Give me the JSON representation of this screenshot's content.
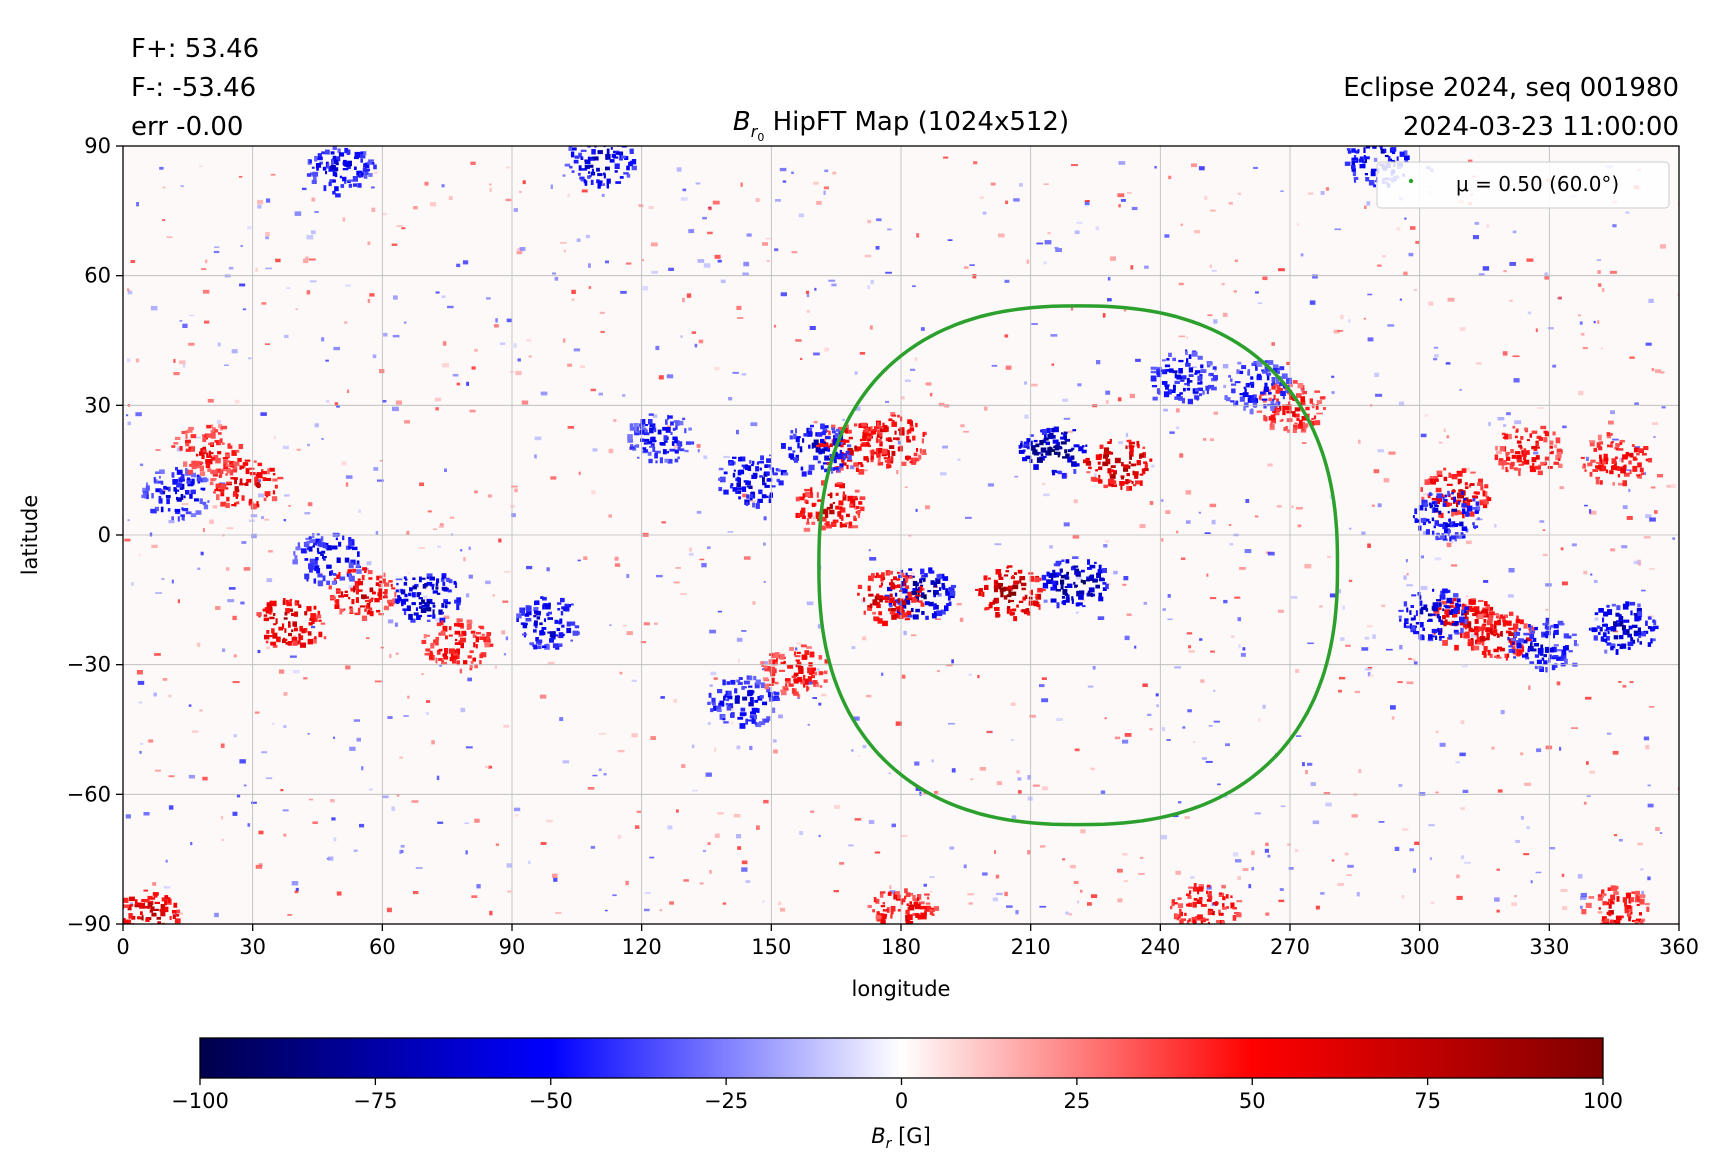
{
  "header": {
    "flux_pos": "F+: 53.46",
    "flux_neg": "F-: -53.46",
    "flux_err": "err -0.00",
    "title_symbol": "B",
    "title_sub": "r",
    "title_subsub": "0",
    "title_rest": " HipFT Map (1024x512)",
    "run_label": "Eclipse 2024, seq 001980",
    "timestamp": "2024-03-23 11:00:00"
  },
  "legend": {
    "label": "μ = 0.50 (60.0°)",
    "marker_color": "#2ca02c"
  },
  "colorbar": {
    "label_symbol": "B",
    "label_sub": "r",
    "label_unit": " [G]",
    "ticks": [
      "−100",
      "−75",
      "−50",
      "−25",
      "0",
      "25",
      "50",
      "75",
      "100"
    ],
    "cmap": "seismic",
    "colors": [
      "#00004c",
      "#0000ff",
      "#ffffff",
      "#ff0000",
      "#800000"
    ]
  },
  "chart_data": {
    "type": "heatmap",
    "title": "Br0 HipFT Map (1024x512)",
    "xlabel": "longitude",
    "ylabel": "latitude",
    "xlim": [
      0,
      360
    ],
    "ylim": [
      -90,
      90
    ],
    "x_ticks": [
      "0",
      "30",
      "60",
      "90",
      "120",
      "150",
      "180",
      "210",
      "240",
      "270",
      "300",
      "330",
      "360"
    ],
    "y_ticks": [
      "90",
      "60",
      "30",
      "0",
      "−30",
      "−60",
      "−90"
    ],
    "x_tick_values": [
      0,
      30,
      60,
      90,
      120,
      150,
      180,
      210,
      240,
      270,
      300,
      330,
      360
    ],
    "y_tick_values": [
      90,
      60,
      30,
      0,
      -30,
      -60,
      -90
    ],
    "grid": true,
    "legend_position": "top-right",
    "vmin": -100,
    "vmax": 100,
    "clip_contour": {
      "name": "μ = 0.50 (60.0°)",
      "color": "#2ca02c",
      "lon_range": [
        161,
        281
      ],
      "lat_range": [
        -67,
        53
      ],
      "center": [
        221,
        -6
      ]
    },
    "active_regions": [
      {
        "lon": 215,
        "lat": 20,
        "sign": -1,
        "strength": 100
      },
      {
        "lon": 230,
        "lat": 17,
        "sign": 1,
        "strength": 100
      },
      {
        "lon": 205,
        "lat": -13,
        "sign": 1,
        "strength": 100
      },
      {
        "lon": 220,
        "lat": -11,
        "sign": -1,
        "strength": 100
      },
      {
        "lon": 184,
        "lat": -13,
        "sign": -1,
        "strength": 95
      },
      {
        "lon": 177,
        "lat": -14,
        "sign": 1,
        "strength": 85
      },
      {
        "lon": 178,
        "lat": 22,
        "sign": 1,
        "strength": 85
      },
      {
        "lon": 168,
        "lat": 21,
        "sign": 1,
        "strength": 80
      },
      {
        "lon": 160,
        "lat": 20,
        "sign": -1,
        "strength": 80
      },
      {
        "lon": 163,
        "lat": 7,
        "sign": 1,
        "strength": 80
      },
      {
        "lon": 38,
        "lat": -20,
        "sign": 1,
        "strength": 90
      },
      {
        "lon": 55,
        "lat": -13,
        "sign": 1,
        "strength": 80
      },
      {
        "lon": 47,
        "lat": -5,
        "sign": -1,
        "strength": 75
      },
      {
        "lon": 70,
        "lat": -14,
        "sign": -1,
        "strength": 90
      },
      {
        "lon": 77,
        "lat": -25,
        "sign": 1,
        "strength": 70
      },
      {
        "lon": 98,
        "lat": -20,
        "sign": -1,
        "strength": 75
      },
      {
        "lon": 28,
        "lat": 12,
        "sign": 1,
        "strength": 80
      },
      {
        "lon": 12,
        "lat": 10,
        "sign": -1,
        "strength": 70
      },
      {
        "lon": 19,
        "lat": 20,
        "sign": 1,
        "strength": 65
      },
      {
        "lon": 145,
        "lat": 13,
        "sign": -1,
        "strength": 80
      },
      {
        "lon": 124,
        "lat": 23,
        "sign": -1,
        "strength": 65
      },
      {
        "lon": 143,
        "lat": -38,
        "sign": -1,
        "strength": 70
      },
      {
        "lon": 155,
        "lat": -31,
        "sign": 1,
        "strength": 65
      },
      {
        "lon": 310,
        "lat": -20,
        "sign": 1,
        "strength": 90
      },
      {
        "lon": 303,
        "lat": -18,
        "sign": -1,
        "strength": 85
      },
      {
        "lon": 318,
        "lat": -23,
        "sign": 1,
        "strength": 80
      },
      {
        "lon": 328,
        "lat": -25,
        "sign": -1,
        "strength": 75
      },
      {
        "lon": 347,
        "lat": -21,
        "sign": -1,
        "strength": 85
      },
      {
        "lon": 308,
        "lat": 10,
        "sign": 1,
        "strength": 80
      },
      {
        "lon": 306,
        "lat": 5,
        "sign": -1,
        "strength": 75
      },
      {
        "lon": 325,
        "lat": 20,
        "sign": 1,
        "strength": 70
      },
      {
        "lon": 345,
        "lat": 18,
        "sign": 1,
        "strength": 70
      },
      {
        "lon": 270,
        "lat": 30,
        "sign": 1,
        "strength": 65
      },
      {
        "lon": 245,
        "lat": 37,
        "sign": -1,
        "strength": 70
      },
      {
        "lon": 262,
        "lat": 35,
        "sign": -1,
        "strength": 65
      },
      {
        "lon": 110,
        "lat": 87,
        "sign": -1,
        "strength": 80
      },
      {
        "lon": 290,
        "lat": 87,
        "sign": -1,
        "strength": 80
      },
      {
        "lon": 50,
        "lat": 85,
        "sign": -1,
        "strength": 70
      },
      {
        "lon": 5,
        "lat": -88,
        "sign": 1,
        "strength": 90
      },
      {
        "lon": 180,
        "lat": -87,
        "sign": 1,
        "strength": 70
      },
      {
        "lon": 250,
        "lat": -86,
        "sign": 1,
        "strength": 70
      },
      {
        "lon": 345,
        "lat": -87,
        "sign": 1,
        "strength": 70
      }
    ]
  }
}
